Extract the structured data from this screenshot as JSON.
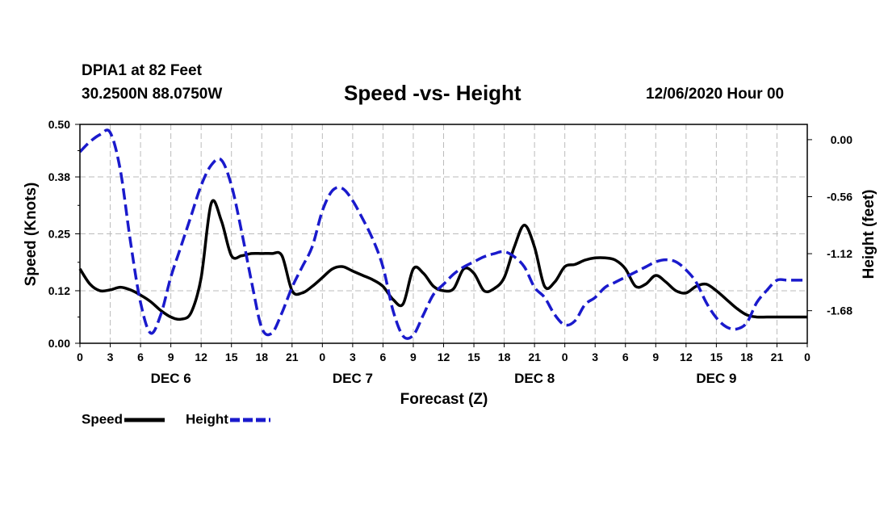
{
  "header": {
    "station": "DPIA1 at 82 Feet",
    "coords": "30.2500N 88.0750W",
    "title": "Speed -vs- Height",
    "stamp": "12/06/2020 Hour 00"
  },
  "colors": {
    "speed": "#000000",
    "height": "#1a1acc",
    "grid": "#bbbbbb"
  },
  "chart_data": {
    "type": "line",
    "title": "Speed -vs- Height",
    "xlabel": "Forecast (Z)",
    "ylabel": "Speed (Knots)",
    "y2label": "Height (feet)",
    "xlim": [
      0,
      72
    ],
    "ylim": [
      0,
      0.5
    ],
    "y2lim": [
      -2.0,
      0.15
    ],
    "x_ticks": [
      0,
      3,
      6,
      9,
      12,
      15,
      18,
      21,
      24,
      27,
      30,
      33,
      36,
      39,
      42,
      45,
      48,
      51,
      54,
      57,
      60,
      63,
      66,
      69,
      72
    ],
    "x_tick_labels": [
      "0",
      "3",
      "6",
      "9",
      "12",
      "15",
      "18",
      "21",
      "0",
      "3",
      "6",
      "9",
      "12",
      "15",
      "18",
      "21",
      "0",
      "3",
      "6",
      "9",
      "12",
      "15",
      "18",
      "21",
      "0"
    ],
    "day_labels": [
      {
        "x": 9,
        "label": "DEC 6"
      },
      {
        "x": 27,
        "label": "DEC 7"
      },
      {
        "x": 45,
        "label": "DEC 8"
      },
      {
        "x": 63,
        "label": "DEC 9"
      }
    ],
    "y_ticks": [
      0.0,
      0.12,
      0.25,
      0.38,
      0.5
    ],
    "y_tick_labels": [
      "0.00",
      "0.12",
      "0.25",
      "0.38",
      "0.50"
    ],
    "y2_ticks": [
      0.0,
      -0.56,
      -1.12,
      -1.68
    ],
    "y2_tick_labels": [
      "0.00",
      "-0.56",
      "-1.12",
      "-1.68"
    ],
    "series": [
      {
        "name": "Speed",
        "axis": "left",
        "style": "solid",
        "x": [
          0,
          1,
          2,
          3,
          4,
          5,
          6,
          7,
          8,
          9,
          10,
          11,
          12,
          13,
          14,
          15,
          16,
          17,
          18,
          19,
          20,
          21,
          22,
          23,
          24,
          25,
          26,
          27,
          28,
          29,
          30,
          31,
          32,
          33,
          34,
          35,
          36,
          37,
          38,
          39,
          40,
          41,
          42,
          43,
          44,
          45,
          46,
          47,
          48,
          49,
          50,
          51,
          52,
          53,
          54,
          55,
          56,
          57,
          58,
          59,
          60,
          61,
          62,
          63,
          64,
          65,
          66,
          67,
          68,
          69,
          70,
          71,
          72
        ],
        "values": [
          0.17,
          0.135,
          0.12,
          0.122,
          0.128,
          0.122,
          0.11,
          0.095,
          0.075,
          0.06,
          0.055,
          0.07,
          0.15,
          0.32,
          0.28,
          0.2,
          0.2,
          0.205,
          0.205,
          0.205,
          0.2,
          0.12,
          0.115,
          0.13,
          0.15,
          0.17,
          0.175,
          0.165,
          0.155,
          0.145,
          0.13,
          0.1,
          0.09,
          0.17,
          0.16,
          0.13,
          0.12,
          0.125,
          0.17,
          0.16,
          0.12,
          0.125,
          0.15,
          0.22,
          0.27,
          0.22,
          0.13,
          0.14,
          0.175,
          0.18,
          0.19,
          0.195,
          0.195,
          0.19,
          0.17,
          0.13,
          0.135,
          0.155,
          0.14,
          0.12,
          0.115,
          0.13,
          0.135,
          0.12,
          0.1,
          0.08,
          0.065,
          0.06,
          0.06,
          0.06,
          0.06,
          0.06,
          0.06
        ]
      },
      {
        "name": "Height",
        "axis": "right",
        "style": "dashed",
        "x": [
          0,
          1,
          2,
          3,
          4,
          5,
          6,
          7,
          8,
          9,
          10,
          11,
          12,
          13,
          14,
          15,
          16,
          17,
          18,
          19,
          20,
          21,
          22,
          23,
          24,
          25,
          26,
          27,
          28,
          29,
          30,
          31,
          32,
          33,
          34,
          35,
          36,
          37,
          38,
          39,
          40,
          41,
          42,
          43,
          44,
          45,
          46,
          47,
          48,
          49,
          50,
          51,
          52,
          53,
          54,
          55,
          56,
          57,
          58,
          59,
          60,
          61,
          62,
          63,
          64,
          65,
          66,
          67,
          68,
          69,
          70,
          71,
          72
        ],
        "values": [
          -0.12,
          -0.02,
          0.05,
          0.07,
          -0.3,
          -1.0,
          -1.6,
          -1.9,
          -1.72,
          -1.35,
          -1.05,
          -0.75,
          -0.45,
          -0.25,
          -0.2,
          -0.45,
          -0.9,
          -1.4,
          -1.85,
          -1.9,
          -1.7,
          -1.45,
          -1.25,
          -1.05,
          -0.7,
          -0.5,
          -0.48,
          -0.6,
          -0.78,
          -0.98,
          -1.25,
          -1.68,
          -1.93,
          -1.92,
          -1.72,
          -1.52,
          -1.42,
          -1.32,
          -1.25,
          -1.2,
          -1.15,
          -1.12,
          -1.1,
          -1.15,
          -1.25,
          -1.45,
          -1.55,
          -1.72,
          -1.82,
          -1.78,
          -1.62,
          -1.55,
          -1.45,
          -1.4,
          -1.35,
          -1.3,
          -1.25,
          -1.2,
          -1.18,
          -1.2,
          -1.28,
          -1.4,
          -1.6,
          -1.75,
          -1.84,
          -1.86,
          -1.8,
          -1.6,
          -1.48,
          -1.38,
          -1.38,
          -1.38,
          -1.38
        ]
      }
    ],
    "legend": [
      {
        "label": "Speed",
        "style": "solid"
      },
      {
        "label": "Height",
        "style": "dashed"
      }
    ]
  }
}
